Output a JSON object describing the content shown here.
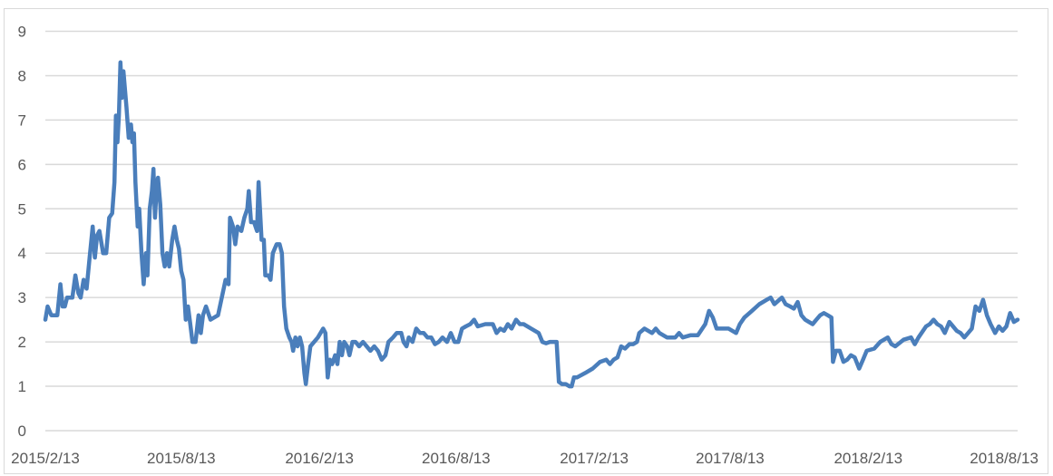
{
  "chart_data": {
    "type": "line",
    "title": "",
    "xlabel": "",
    "ylabel": "",
    "x_axis_type": "date",
    "xlim": [
      "2015/2/13",
      "2018/8/31"
    ],
    "ylim": [
      0,
      9
    ],
    "y_ticks": [
      "0",
      "1",
      "2",
      "3",
      "4",
      "5",
      "6",
      "7",
      "8",
      "9"
    ],
    "x_ticks": [
      "2015/2/13",
      "2015/8/13",
      "2016/2/13",
      "2016/8/13",
      "2017/2/13",
      "2017/8/13",
      "2018/2/13",
      "2018/8/13"
    ],
    "grid": "horizontal",
    "legend": "none",
    "line_color": "#4a7ebb",
    "grid_color": "#d9d9d9",
    "series": [
      {
        "points": [
          [
            "2015/2/13",
            2.5
          ],
          [
            "2015/2/16",
            2.8
          ],
          [
            "2015/2/21",
            2.6
          ],
          [
            "2015/3/1",
            2.6
          ],
          [
            "2015/3/5",
            3.3
          ],
          [
            "2015/3/8",
            2.8
          ],
          [
            "2015/3/11",
            2.8
          ],
          [
            "2015/3/14",
            3.0
          ],
          [
            "2015/3/21",
            3.0
          ],
          [
            "2015/3/25",
            3.5
          ],
          [
            "2015/3/29",
            3.1
          ],
          [
            "2015/4/1",
            3.0
          ],
          [
            "2015/4/5",
            3.4
          ],
          [
            "2015/4/9",
            3.2
          ],
          [
            "2015/4/13",
            3.9
          ],
          [
            "2015/4/17",
            4.6
          ],
          [
            "2015/4/20",
            3.9
          ],
          [
            "2015/4/23",
            4.4
          ],
          [
            "2015/4/26",
            4.5
          ],
          [
            "2015/5/1",
            4.0
          ],
          [
            "2015/5/5",
            4.0
          ],
          [
            "2015/5/9",
            4.8
          ],
          [
            "2015/5/13",
            4.9
          ],
          [
            "2015/5/16",
            5.6
          ],
          [
            "2015/5/18",
            7.1
          ],
          [
            "2015/5/20",
            6.5
          ],
          [
            "2015/5/22",
            7.1
          ],
          [
            "2015/5/24",
            8.3
          ],
          [
            "2015/5/26",
            7.5
          ],
          [
            "2015/5/28",
            8.1
          ],
          [
            "2015/6/1",
            7.3
          ],
          [
            "2015/6/4",
            6.6
          ],
          [
            "2015/6/7",
            6.9
          ],
          [
            "2015/6/9",
            6.5
          ],
          [
            "2015/6/11",
            6.7
          ],
          [
            "2015/6/13",
            5.6
          ],
          [
            "2015/6/16",
            4.6
          ],
          [
            "2015/6/18",
            5.0
          ],
          [
            "2015/6/21",
            4.0
          ],
          [
            "2015/6/24",
            3.3
          ],
          [
            "2015/6/27",
            4.0
          ],
          [
            "2015/6/29",
            3.5
          ],
          [
            "2015/7/2",
            5.0
          ],
          [
            "2015/7/5",
            5.4
          ],
          [
            "2015/7/7",
            5.9
          ],
          [
            "2015/7/9",
            4.8
          ],
          [
            "2015/7/11",
            5.4
          ],
          [
            "2015/7/13",
            5.7
          ],
          [
            "2015/7/16",
            5.1
          ],
          [
            "2015/7/19",
            4.0
          ],
          [
            "2015/7/22",
            3.7
          ],
          [
            "2015/7/25",
            4.0
          ],
          [
            "2015/7/28",
            3.7
          ],
          [
            "2015/8/1",
            4.3
          ],
          [
            "2015/8/4",
            4.6
          ],
          [
            "2015/8/7",
            4.3
          ],
          [
            "2015/8/10",
            4.1
          ],
          [
            "2015/8/13",
            3.6
          ],
          [
            "2015/8/16",
            3.4
          ],
          [
            "2015/8/19",
            2.5
          ],
          [
            "2015/8/22",
            2.8
          ],
          [
            "2015/8/25",
            2.4
          ],
          [
            "2015/8/28",
            2.0
          ],
          [
            "2015/9/1",
            2.0
          ],
          [
            "2015/9/5",
            2.6
          ],
          [
            "2015/9/8",
            2.2
          ],
          [
            "2015/9/11",
            2.6
          ],
          [
            "2015/9/15",
            2.8
          ],
          [
            "2015/9/21",
            2.5
          ],
          [
            "2015/10/1",
            2.6
          ],
          [
            "2015/10/11",
            3.4
          ],
          [
            "2015/10/15",
            3.3
          ],
          [
            "2015/10/17",
            4.8
          ],
          [
            "2015/10/21",
            4.6
          ],
          [
            "2015/10/24",
            4.2
          ],
          [
            "2015/10/27",
            4.6
          ],
          [
            "2015/11/1",
            4.5
          ],
          [
            "2015/11/5",
            4.8
          ],
          [
            "2015/11/9",
            5.0
          ],
          [
            "2015/11/11",
            5.4
          ],
          [
            "2015/11/14",
            4.7
          ],
          [
            "2015/11/18",
            4.7
          ],
          [
            "2015/11/22",
            4.5
          ],
          [
            "2015/11/24",
            5.6
          ],
          [
            "2015/11/28",
            4.3
          ],
          [
            "2015/12/1",
            4.3
          ],
          [
            "2015/12/3",
            3.5
          ],
          [
            "2015/12/7",
            3.5
          ],
          [
            "2015/12/10",
            3.4
          ],
          [
            "2015/12/13",
            4.0
          ],
          [
            "2015/12/18",
            4.2
          ],
          [
            "2015/12/22",
            4.2
          ],
          [
            "2015/12/25",
            4.0
          ],
          [
            "2015/12/28",
            2.8
          ],
          [
            "2015/12/31",
            2.3
          ],
          [
            "2016/1/4",
            2.1
          ],
          [
            "2016/1/7",
            2.0
          ],
          [
            "2016/1/9",
            1.8
          ],
          [
            "2016/1/12",
            2.1
          ],
          [
            "2016/1/15",
            1.9
          ],
          [
            "2016/1/18",
            2.1
          ],
          [
            "2016/1/21",
            1.9
          ],
          [
            "2016/1/24",
            1.3
          ],
          [
            "2016/1/26",
            1.05
          ],
          [
            "2016/1/29",
            1.5
          ],
          [
            "2016/2/1",
            1.9
          ],
          [
            "2016/2/11",
            2.1
          ],
          [
            "2016/2/18",
            2.3
          ],
          [
            "2016/2/21",
            2.2
          ],
          [
            "2016/2/24",
            1.2
          ],
          [
            "2016/2/27",
            1.6
          ],
          [
            "2016/3/1",
            1.5
          ],
          [
            "2016/3/5",
            1.7
          ],
          [
            "2016/3/8",
            1.5
          ],
          [
            "2016/3/11",
            2.0
          ],
          [
            "2016/3/14",
            1.7
          ],
          [
            "2016/3/17",
            2.0
          ],
          [
            "2016/3/21",
            1.9
          ],
          [
            "2016/3/24",
            1.7
          ],
          [
            "2016/3/28",
            2.0
          ],
          [
            "2016/4/1",
            2.0
          ],
          [
            "2016/4/6",
            1.9
          ],
          [
            "2016/4/11",
            2.0
          ],
          [
            "2016/4/16",
            1.9
          ],
          [
            "2016/4/21",
            1.8
          ],
          [
            "2016/4/26",
            1.9
          ],
          [
            "2016/5/1",
            1.8
          ],
          [
            "2016/5/6",
            1.6
          ],
          [
            "2016/5/11",
            1.7
          ],
          [
            "2016/5/15",
            2.0
          ],
          [
            "2016/5/21",
            2.1
          ],
          [
            "2016/5/26",
            2.2
          ],
          [
            "2016/6/1",
            2.2
          ],
          [
            "2016/6/4",
            2.0
          ],
          [
            "2016/6/8",
            1.9
          ],
          [
            "2016/6/11",
            2.1
          ],
          [
            "2016/6/16",
            2.0
          ],
          [
            "2016/6/21",
            2.3
          ],
          [
            "2016/6/26",
            2.2
          ],
          [
            "2016/7/1",
            2.2
          ],
          [
            "2016/7/6",
            2.1
          ],
          [
            "2016/7/11",
            2.1
          ],
          [
            "2016/7/16",
            1.95
          ],
          [
            "2016/7/21",
            2.0
          ],
          [
            "2016/7/26",
            2.1
          ],
          [
            "2016/8/1",
            2.0
          ],
          [
            "2016/8/6",
            2.2
          ],
          [
            "2016/8/11",
            2.0
          ],
          [
            "2016/8/16",
            2.0
          ],
          [
            "2016/8/21",
            2.3
          ],
          [
            "2016/8/26",
            2.35
          ],
          [
            "2016/9/1",
            2.4
          ],
          [
            "2016/9/6",
            2.5
          ],
          [
            "2016/9/11",
            2.35
          ],
          [
            "2016/9/21",
            2.4
          ],
          [
            "2016/10/1",
            2.4
          ],
          [
            "2016/10/6",
            2.2
          ],
          [
            "2016/10/11",
            2.3
          ],
          [
            "2016/10/16",
            2.25
          ],
          [
            "2016/10/21",
            2.4
          ],
          [
            "2016/10/26",
            2.3
          ],
          [
            "2016/11/1",
            2.5
          ],
          [
            "2016/11/6",
            2.4
          ],
          [
            "2016/11/11",
            2.4
          ],
          [
            "2016/11/21",
            2.3
          ],
          [
            "2016/12/1",
            2.2
          ],
          [
            "2016/12/6",
            2.0
          ],
          [
            "2016/12/11",
            1.97
          ],
          [
            "2016/12/16",
            2.0
          ],
          [
            "2016/12/21",
            2.0
          ],
          [
            "2016/12/25",
            2.0
          ],
          [
            "2016/12/28",
            1.1
          ],
          [
            "2017/1/1",
            1.05
          ],
          [
            "2017/1/6",
            1.05
          ],
          [
            "2017/1/11",
            1.0
          ],
          [
            "2017/1/14",
            1.0
          ],
          [
            "2017/1/17",
            1.2
          ],
          [
            "2017/1/21",
            1.2
          ],
          [
            "2017/2/1",
            1.3
          ],
          [
            "2017/2/11",
            1.4
          ],
          [
            "2017/2/21",
            1.55
          ],
          [
            "2017/3/1",
            1.6
          ],
          [
            "2017/3/6",
            1.5
          ],
          [
            "2017/3/11",
            1.6
          ],
          [
            "2017/3/16",
            1.65
          ],
          [
            "2017/3/21",
            1.9
          ],
          [
            "2017/3/26",
            1.85
          ],
          [
            "2017/4/1",
            1.95
          ],
          [
            "2017/4/6",
            1.95
          ],
          [
            "2017/4/11",
            2.0
          ],
          [
            "2017/4/14",
            2.2
          ],
          [
            "2017/4/21",
            2.3
          ],
          [
            "2017/5/1",
            2.2
          ],
          [
            "2017/5/6",
            2.3
          ],
          [
            "2017/5/11",
            2.2
          ],
          [
            "2017/5/21",
            2.1
          ],
          [
            "2017/6/1",
            2.1
          ],
          [
            "2017/6/6",
            2.2
          ],
          [
            "2017/6/11",
            2.1
          ],
          [
            "2017/6/21",
            2.15
          ],
          [
            "2017/7/1",
            2.15
          ],
          [
            "2017/7/11",
            2.4
          ],
          [
            "2017/7/16",
            2.7
          ],
          [
            "2017/7/21",
            2.55
          ],
          [
            "2017/7/26",
            2.3
          ],
          [
            "2017/8/1",
            2.3
          ],
          [
            "2017/8/11",
            2.3
          ],
          [
            "2017/8/21",
            2.2
          ],
          [
            "2017/8/26",
            2.4
          ],
          [
            "2017/9/1",
            2.55
          ],
          [
            "2017/9/11",
            2.7
          ],
          [
            "2017/9/21",
            2.85
          ],
          [
            "2017/10/1",
            2.95
          ],
          [
            "2017/10/6",
            3.0
          ],
          [
            "2017/10/11",
            2.85
          ],
          [
            "2017/10/21",
            3.0
          ],
          [
            "2017/10/26",
            2.85
          ],
          [
            "2017/11/1",
            2.8
          ],
          [
            "2017/11/6",
            2.75
          ],
          [
            "2017/11/11",
            2.9
          ],
          [
            "2017/11/16",
            2.6
          ],
          [
            "2017/11/21",
            2.5
          ],
          [
            "2017/12/1",
            2.4
          ],
          [
            "2017/12/6",
            2.5
          ],
          [
            "2017/12/11",
            2.6
          ],
          [
            "2017/12/16",
            2.65
          ],
          [
            "2017/12/21",
            2.6
          ],
          [
            "2017/12/26",
            2.55
          ],
          [
            "2017/12/28",
            1.55
          ],
          [
            "2018/1/1",
            1.8
          ],
          [
            "2018/1/6",
            1.8
          ],
          [
            "2018/1/11",
            1.55
          ],
          [
            "2018/1/16",
            1.6
          ],
          [
            "2018/1/21",
            1.7
          ],
          [
            "2018/1/26",
            1.65
          ],
          [
            "2018/2/1",
            1.4
          ],
          [
            "2018/2/6",
            1.6
          ],
          [
            "2018/2/11",
            1.8
          ],
          [
            "2018/2/21",
            1.85
          ],
          [
            "2018/3/1",
            2.0
          ],
          [
            "2018/3/11",
            2.1
          ],
          [
            "2018/3/16",
            1.95
          ],
          [
            "2018/3/21",
            1.9
          ],
          [
            "2018/4/1",
            2.05
          ],
          [
            "2018/4/11",
            2.1
          ],
          [
            "2018/4/16",
            1.95
          ],
          [
            "2018/4/21",
            2.1
          ],
          [
            "2018/5/1",
            2.35
          ],
          [
            "2018/5/6",
            2.4
          ],
          [
            "2018/5/11",
            2.5
          ],
          [
            "2018/5/16",
            2.4
          ],
          [
            "2018/5/21",
            2.35
          ],
          [
            "2018/5/26",
            2.2
          ],
          [
            "2018/6/1",
            2.45
          ],
          [
            "2018/6/6",
            2.35
          ],
          [
            "2018/6/11",
            2.25
          ],
          [
            "2018/6/16",
            2.2
          ],
          [
            "2018/6/21",
            2.1
          ],
          [
            "2018/6/26",
            2.2
          ],
          [
            "2018/7/1",
            2.3
          ],
          [
            "2018/7/6",
            2.8
          ],
          [
            "2018/7/11",
            2.7
          ],
          [
            "2018/7/16",
            2.95
          ],
          [
            "2018/7/21",
            2.6
          ],
          [
            "2018/7/26",
            2.4
          ],
          [
            "2018/8/1",
            2.2
          ],
          [
            "2018/8/6",
            2.35
          ],
          [
            "2018/8/11",
            2.25
          ],
          [
            "2018/8/16",
            2.35
          ],
          [
            "2018/8/21",
            2.65
          ],
          [
            "2018/8/26",
            2.45
          ],
          [
            "2018/8/31",
            2.5
          ]
        ]
      }
    ]
  }
}
